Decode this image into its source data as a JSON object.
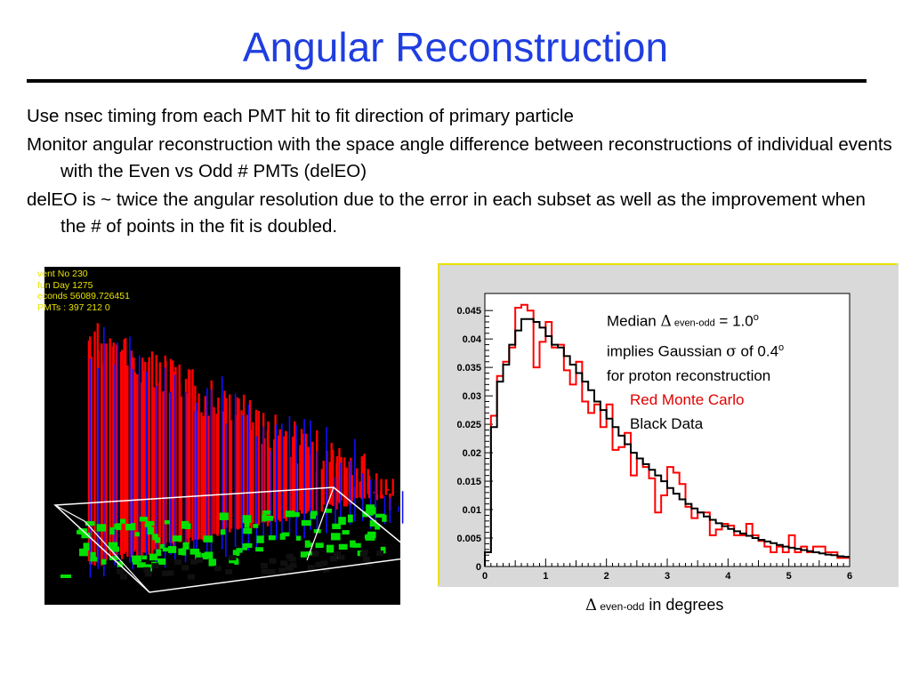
{
  "slide": {
    "title": "Angular Reconstruction",
    "bullets": [
      "Use nsec timing from each PMT hit to fit direction of primary particle",
      "Monitor angular reconstruction with the space angle difference between reconstructions of individual events with the Even vs Odd # PMTs (delEO)",
      "delEO is ~ twice the angular resolution due to the error in each subset as well as the improvement when the # of points in the fit is doubled."
    ]
  },
  "event_display": {
    "lines": [
      "vent No  230",
      "fun Day  1275",
      "econds  56089.726451",
      "PMTs :  397  212  0"
    ],
    "colors": {
      "text": "#e8e300",
      "hits_red": "#ff0000",
      "hits_blue": "#1010ff",
      "ground": "#00e000",
      "frame": "#ffffff"
    }
  },
  "annotation": {
    "line1_pre": "Median ",
    "delta": "Δ",
    "line1_sub": " even-odd",
    "line1_post": " = 1.0",
    "deg": "o",
    "line2_pre": "implies Gaussian ",
    "sigma": "σ",
    "line2_post": " of 0.4",
    "line3": "for proton reconstruction",
    "red_label": "Red Monte Carlo",
    "black_label": "Black Data"
  },
  "axis_caption": {
    "delta": "Δ",
    "sub": " even-odd",
    "text": " in degrees"
  },
  "chart_data": {
    "type": "line",
    "x_bin_edges_start": 0,
    "bin_width": 0.1,
    "xlim": [
      0,
      6
    ],
    "ylim": [
      0,
      0.048
    ],
    "xticks": [
      "0",
      "1",
      "2",
      "3",
      "4",
      "5",
      "6"
    ],
    "yticks": [
      "0",
      "0.005",
      "0.01",
      "0.015",
      "0.02",
      "0.025",
      "0.03",
      "0.035",
      "0.04",
      "0.045"
    ],
    "ytick_values": [
      0,
      0.005,
      0.01,
      0.015,
      0.02,
      0.025,
      0.03,
      0.035,
      0.04,
      0.045
    ],
    "series": [
      {
        "color": "#000000",
        "values": [
          0.0025,
          0.0245,
          0.0325,
          0.0355,
          0.039,
          0.0415,
          0.0435,
          0.0435,
          0.043,
          0.042,
          0.0405,
          0.039,
          0.0385,
          0.037,
          0.0355,
          0.034,
          0.0325,
          0.031,
          0.029,
          0.0275,
          0.026,
          0.0245,
          0.023,
          0.0215,
          0.02,
          0.019,
          0.018,
          0.017,
          0.016,
          0.015,
          0.0138,
          0.0128,
          0.0118,
          0.011,
          0.0102,
          0.0095,
          0.0088,
          0.0082,
          0.0076,
          0.0071,
          0.0066,
          0.0062,
          0.0058,
          0.0054,
          0.005,
          0.0047,
          0.0044,
          0.0041,
          0.0038,
          0.0035,
          0.0033,
          0.0031,
          0.0029,
          0.0027,
          0.0025,
          0.0023,
          0.0021,
          0.002,
          0.0018,
          0.0017
        ]
      },
      {
        "color": "#ff0000",
        "values": [
          0.0025,
          0.0265,
          0.0335,
          0.036,
          0.0385,
          0.0455,
          0.046,
          0.045,
          0.035,
          0.0395,
          0.043,
          0.0385,
          0.039,
          0.0345,
          0.032,
          0.036,
          0.029,
          0.027,
          0.0285,
          0.0245,
          0.0285,
          0.0205,
          0.021,
          0.0235,
          0.016,
          0.019,
          0.0175,
          0.0155,
          0.0095,
          0.0125,
          0.0175,
          0.0165,
          0.0145,
          0.0105,
          0.0085,
          0.0095,
          0.0095,
          0.0055,
          0.0065,
          0.0075,
          0.0072,
          0.0055,
          0.0055,
          0.0075,
          0.0055,
          0.0045,
          0.0035,
          0.0025,
          0.0035,
          0.0025,
          0.0055,
          0.0025,
          0.0035,
          0.0025,
          0.0035,
          0.0035,
          0.0025,
          0.0025,
          0.0015,
          0.0015
        ]
      }
    ]
  }
}
